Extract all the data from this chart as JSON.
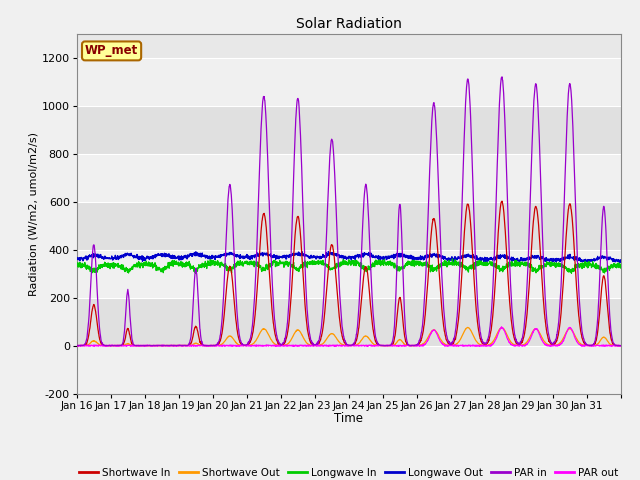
{
  "title": "Solar Radiation",
  "xlabel": "Time",
  "ylabel": "Radiation (W/m2, umol/m2/s)",
  "ylim": [
    -200,
    1300
  ],
  "yticks": [
    -200,
    0,
    200,
    400,
    600,
    800,
    1000,
    1200
  ],
  "legend_label": "WP_met",
  "series_names": [
    "Shortwave In",
    "Shortwave Out",
    "Longwave In",
    "Longwave Out",
    "PAR in",
    "PAR out"
  ],
  "series_colors": [
    "#cc0000",
    "#ff9900",
    "#00cc00",
    "#0000cc",
    "#9900cc",
    "#ff00ff"
  ],
  "num_days": 16,
  "start_day": 16,
  "x_tick_labels": [
    "Jan 16",
    "Jan 17",
    "Jan 18",
    "Jan 19",
    "Jan 20",
    "Jan 21",
    "Jan 22",
    "Jan 23",
    "Jan 24",
    "Jan 25",
    "Jan 26",
    "Jan 27",
    "Jan 28",
    "Jan 29",
    "Jan 30",
    "Jan 31"
  ],
  "par_in_amps": [
    420,
    230,
    0,
    320,
    670,
    1040,
    1030,
    860,
    670,
    590,
    1010,
    1110,
    1120,
    1090,
    1090,
    580
  ],
  "sw_in_amps": [
    170,
    70,
    0,
    80,
    330,
    550,
    540,
    420,
    330,
    200,
    530,
    590,
    600,
    580,
    590,
    290
  ],
  "sw_out_amps": [
    20,
    8,
    0,
    10,
    40,
    70,
    65,
    50,
    40,
    25,
    65,
    75,
    75,
    70,
    70,
    35
  ],
  "par_out_amps": [
    0,
    0,
    0,
    0,
    0,
    0,
    0,
    0,
    0,
    0,
    65,
    0,
    75,
    70,
    75,
    0
  ],
  "par_in_widths": [
    0.09,
    0.06,
    0,
    0.07,
    0.12,
    0.15,
    0.14,
    0.14,
    0.12,
    0.08,
    0.15,
    0.15,
    0.15,
    0.15,
    0.15,
    0.1
  ],
  "sw_in_widths": [
    0.09,
    0.06,
    0,
    0.07,
    0.12,
    0.15,
    0.14,
    0.14,
    0.12,
    0.08,
    0.15,
    0.15,
    0.15,
    0.15,
    0.15,
    0.1
  ],
  "lw_base": 335,
  "lw_out_base": 360
}
